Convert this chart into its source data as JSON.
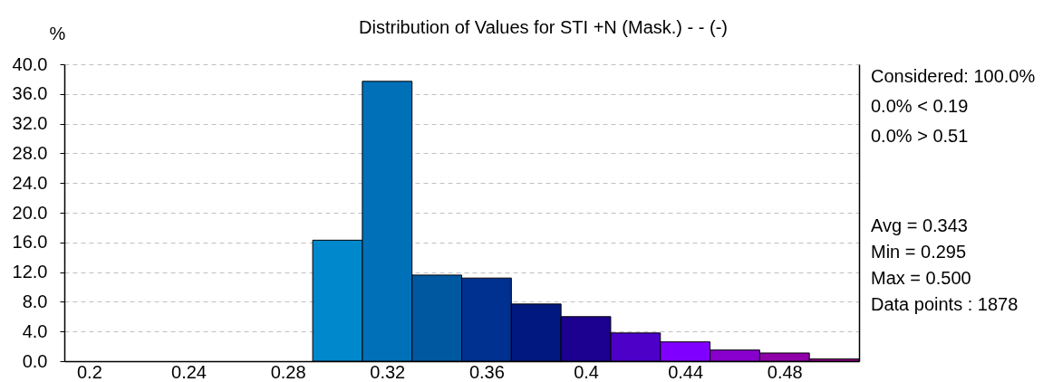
{
  "chart_data": {
    "type": "histogram",
    "title": "Distribution of Values for STI +N (Mask.)  - - (-)",
    "ylabel": "%",
    "bins": [
      0.29,
      0.31,
      0.33,
      0.35,
      0.37,
      0.39,
      0.41,
      0.43,
      0.45,
      0.47,
      0.49,
      0.51
    ],
    "values": [
      16.3,
      37.7,
      11.6,
      11.2,
      7.7,
      6.0,
      3.8,
      2.6,
      1.5,
      1.1,
      0.3
    ],
    "colors": [
      "#0088cc",
      "#0070b8",
      "#0058a0",
      "#003090",
      "#001880",
      "#1c0090",
      "#4c00c8",
      "#8000ff",
      "#8800cc",
      "#9000a8",
      "#980090"
    ],
    "xlim": [
      0.19,
      0.51
    ],
    "xticks": [
      0.2,
      0.24,
      0.28,
      0.32,
      0.36,
      0.4,
      0.44,
      0.48
    ],
    "ylim": [
      0,
      40
    ],
    "yticks": [
      {
        "value": 0,
        "label": "0.0"
      },
      {
        "value": 4,
        "label": "4.0"
      },
      {
        "value": 8,
        "label": "8.0"
      },
      {
        "value": 12,
        "label": "12.0"
      },
      {
        "value": 16,
        "label": "16.0"
      },
      {
        "value": 20,
        "label": "20.0"
      },
      {
        "value": 24,
        "label": "24.0"
      },
      {
        "value": 28,
        "label": "28.0"
      },
      {
        "value": 32,
        "label": "32.0"
      },
      {
        "value": 36,
        "label": "36.0"
      },
      {
        "value": 40,
        "label": "40.0"
      }
    ],
    "grid": "y",
    "annotations": [
      "Considered: 100.0%",
      "0.0% < 0.19",
      "0.0% > 0.51",
      "Avg = 0.343",
      "Min = 0.295",
      "Max = 0.500",
      "Data points : 1878"
    ]
  }
}
